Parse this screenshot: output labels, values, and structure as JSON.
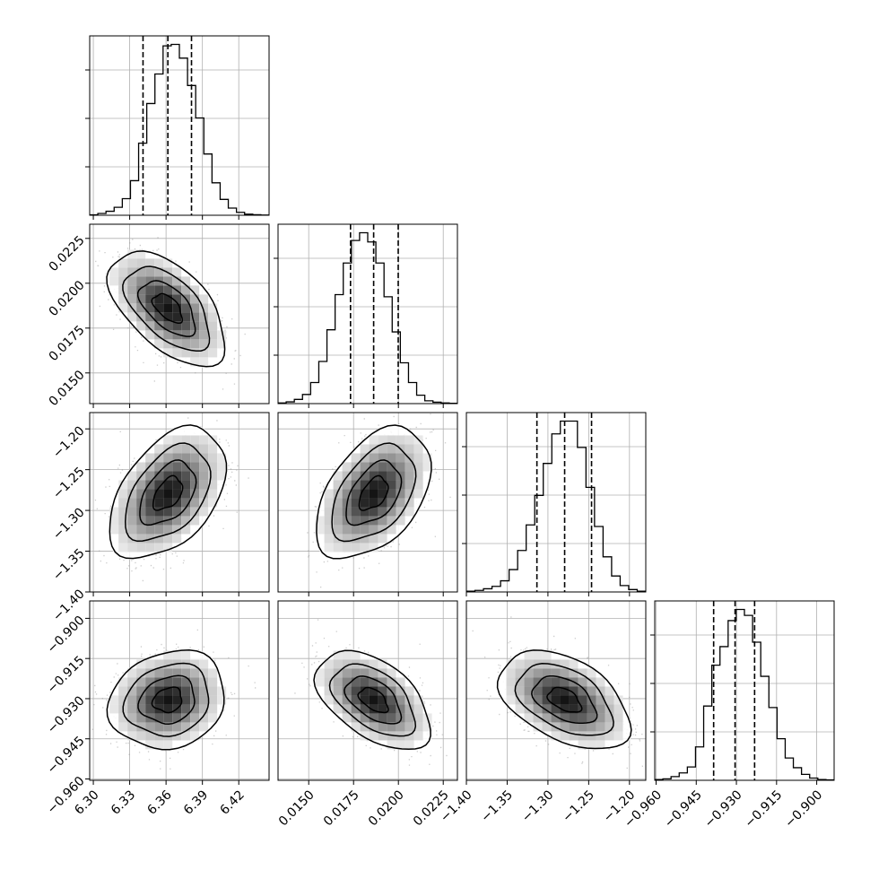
{
  "chart_data": {
    "type": "corner",
    "description_params": 4,
    "grid": true,
    "colors": {
      "line": "#000000",
      "grid": "#b0b0b0",
      "scatter": "#9a9a9a",
      "density_dark": "#000000"
    },
    "parameters": [
      {
        "index": 0,
        "range": [
          6.297,
          6.445
        ],
        "ticks": [
          6.3,
          6.33,
          6.36,
          6.39,
          6.42
        ],
        "tick_labels": [
          "6.30",
          "6.33",
          "6.36",
          "6.39",
          "6.42"
        ],
        "quantiles": [
          6.341,
          6.3615,
          6.381
        ],
        "hist_values": [
          0.6,
          2.5,
          5.5,
          11,
          23,
          48,
          100,
          155,
          196,
          235,
          237,
          218,
          180,
          135,
          85,
          45,
          22,
          10,
          4,
          1.5,
          0.8,
          0.3
        ]
      },
      {
        "index": 1,
        "range": [
          0.01329,
          0.02329
        ],
        "ticks": [
          0.015,
          0.0175,
          0.02,
          0.0225
        ],
        "tick_labels": [
          "0.0150",
          "0.0175",
          "0.0200",
          "0.0225"
        ],
        "quantiles": [
          0.01733,
          0.01862,
          0.01999
        ],
        "hist_values": [
          1,
          2.5,
          6,
          13,
          30,
          60,
          105,
          155,
          200,
          232,
          243,
          230,
          200,
          152,
          102,
          58,
          30,
          12,
          4,
          2,
          1,
          0.5
        ]
      },
      {
        "index": 2,
        "range": [
          -1.4,
          -1.18
        ],
        "ticks": [
          -1.4,
          -1.35,
          -1.3,
          -1.25,
          -1.2
        ],
        "tick_labels": [
          "−1.40",
          "−1.35",
          "−1.30",
          "−1.25",
          "−1.20"
        ],
        "quantiles": [
          -1.3135,
          -1.2795,
          -1.2465
        ],
        "hist_values": [
          1,
          2,
          4,
          7,
          14,
          28,
          52,
          84,
          121,
          161,
          198,
          214,
          214,
          181,
          131,
          82,
          44,
          20,
          8,
          3,
          1
        ]
      },
      {
        "index": 3,
        "range": [
          -0.9605,
          -0.8935
        ],
        "ticks": [
          -0.96,
          -0.945,
          -0.93,
          -0.915,
          -0.9
        ],
        "tick_labels": [
          "−0.960",
          "−0.945",
          "−0.930",
          "−0.915",
          "−0.900"
        ],
        "quantiles": [
          -0.9385,
          -0.9305,
          -0.9232
        ],
        "hist_values": [
          1,
          2,
          5,
          10,
          18,
          45,
          100,
          155,
          180,
          215,
          230,
          222,
          186,
          140,
          98,
          56,
          30,
          17,
          8,
          3,
          1,
          0.5
        ]
      }
    ],
    "correlations": {
      "1_0": -0.55,
      "2_0": 0.45,
      "2_1": 0.45,
      "3_0": 0.15,
      "3_1": -0.5,
      "3_2": -0.45
    }
  }
}
